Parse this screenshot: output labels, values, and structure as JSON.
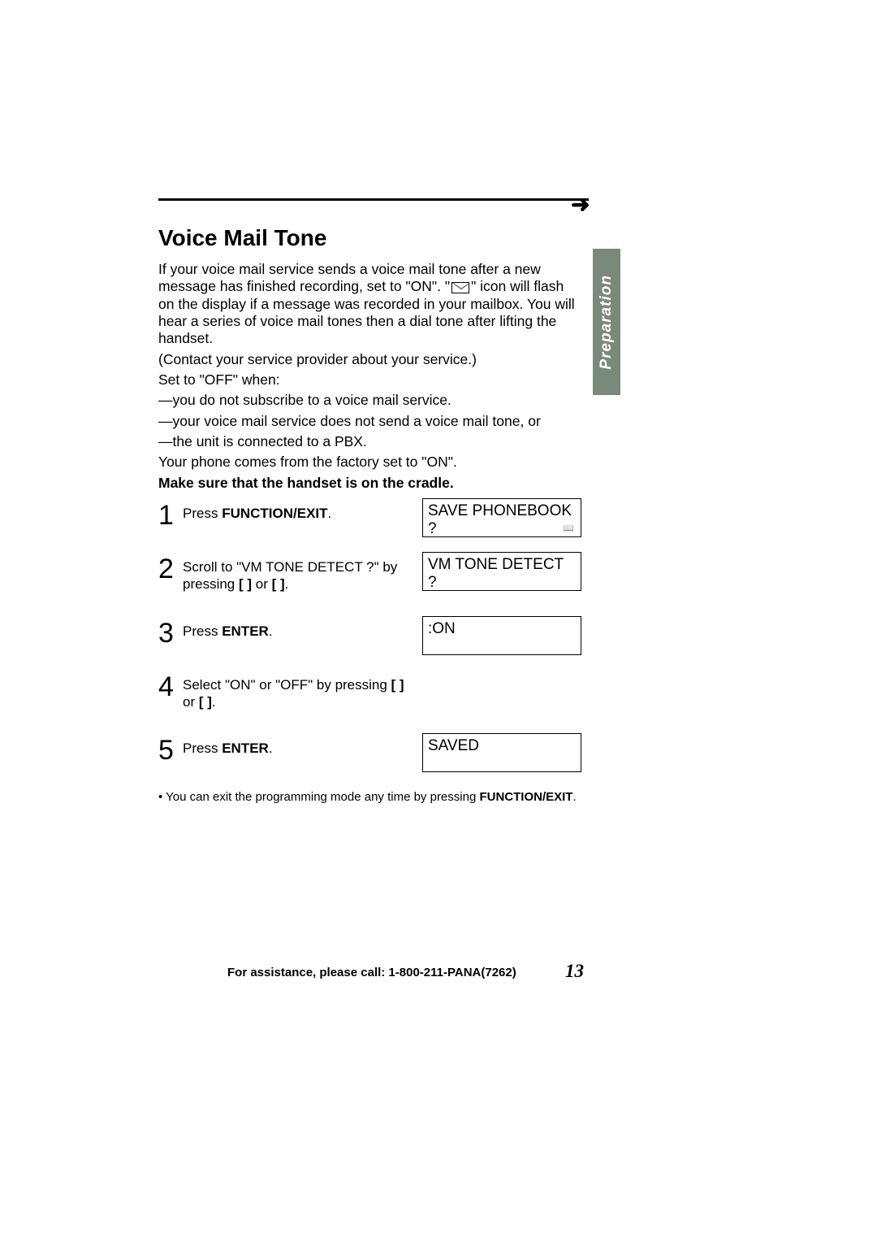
{
  "arrow_glyph": "➜",
  "section_tab": "Preparation",
  "title": "Voice Mail Tone",
  "intro_1_pre": "If your voice mail service sends a voice mail tone after a new message has finished recording, set to \"ON\". \"",
  "intro_1_post": "\" icon will flash on the display if a message was recorded in your mailbox. You will hear a series of voice mail tones then a dial tone after lifting the handset.",
  "intro_2": "(Contact your service provider about your service.)",
  "intro_3": "Set to \"OFF\" when:",
  "intro_4": "—you do not subscribe to a voice mail service.",
  "intro_5": "—your voice mail service does not send a voice mail tone, or",
  "intro_6": "—the unit is connected to a PBX.",
  "intro_7": "Your phone comes from the factory set to \"ON\".",
  "intro_8": "Make sure that the handset is on the cradle.",
  "steps": [
    {
      "num": "1",
      "pre": "Press ",
      "bold": "FUNCTION/EXIT",
      "post": ".",
      "display": "SAVE PHONEBOOK ?",
      "has_sub_icon": true
    },
    {
      "num": "2",
      "pre": "Scroll to \"VM TONE DETECT ?\" by pressing ",
      "bold": "[    ]",
      "mid": " or ",
      "bold2": "[    ]",
      "post2": ".",
      "display": "VM TONE DETECT ?"
    },
    {
      "num": "3",
      "pre": "Press ",
      "bold": "ENTER",
      "post": ".",
      "display": ":ON"
    },
    {
      "num": "4",
      "pre": "Select \"ON\" or \"OFF\" by pressing ",
      "bold": "[    ]",
      "mid": " or ",
      "bold2": "[    ]",
      "post2": "."
    },
    {
      "num": "5",
      "pre": "Press ",
      "bold": "ENTER",
      "post": ".",
      "display": "SAVED"
    }
  ],
  "note_pre": "• You can exit the programming mode any time by pressing ",
  "note_bold": "FUNCTION/EXIT",
  "note_post": ".",
  "footer": "For assistance, please call: 1-800-211-PANA(7262)",
  "page_num": "13"
}
